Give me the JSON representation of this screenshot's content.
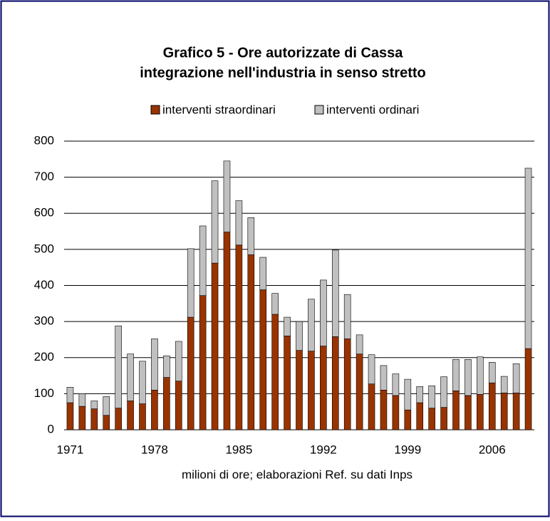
{
  "chart_data": {
    "type": "stacked_bar",
    "title": [
      "Grafico 5 - Ore autorizzate di Cassa",
      "integrazione nell'industria in senso stretto"
    ],
    "footnote": "milioni di ore; elaborazioni Ref. su dati Inps",
    "categories": [
      "1971",
      null,
      null,
      null,
      null,
      null,
      null,
      "1978",
      null,
      null,
      null,
      null,
      null,
      null,
      "1985",
      null,
      null,
      null,
      null,
      null,
      null,
      "1992",
      null,
      null,
      null,
      null,
      null,
      null,
      "1999",
      null,
      null,
      null,
      null,
      null,
      null,
      "2006",
      null,
      null,
      null
    ],
    "series": [
      {
        "name": "interventi straordinari",
        "color": "#993300",
        "values": [
          75,
          65,
          58,
          40,
          60,
          80,
          72,
          110,
          145,
          135,
          312,
          372,
          462,
          548,
          512,
          485,
          388,
          320,
          260,
          220,
          218,
          232,
          258,
          252,
          210,
          127,
          110,
          95,
          55,
          75,
          60,
          62,
          108,
          95,
          98,
          130,
          102,
          102,
          225
        ]
      },
      {
        "name": "interventi ordinari",
        "color": "#c0c0c0",
        "values": [
          43,
          35,
          22,
          52,
          228,
          130,
          118,
          142,
          60,
          110,
          190,
          193,
          228,
          197,
          123,
          103,
          90,
          58,
          52,
          80,
          144,
          183,
          240,
          123,
          53,
          81,
          68,
          60,
          85,
          45,
          62,
          85,
          87,
          100,
          104,
          57,
          46,
          81,
          500
        ]
      }
    ],
    "ylim": [
      0,
      800
    ],
    "yticks": [
      0,
      100,
      200,
      300,
      400,
      500,
      600,
      700,
      800
    ],
    "grid": true,
    "legend": "top"
  }
}
